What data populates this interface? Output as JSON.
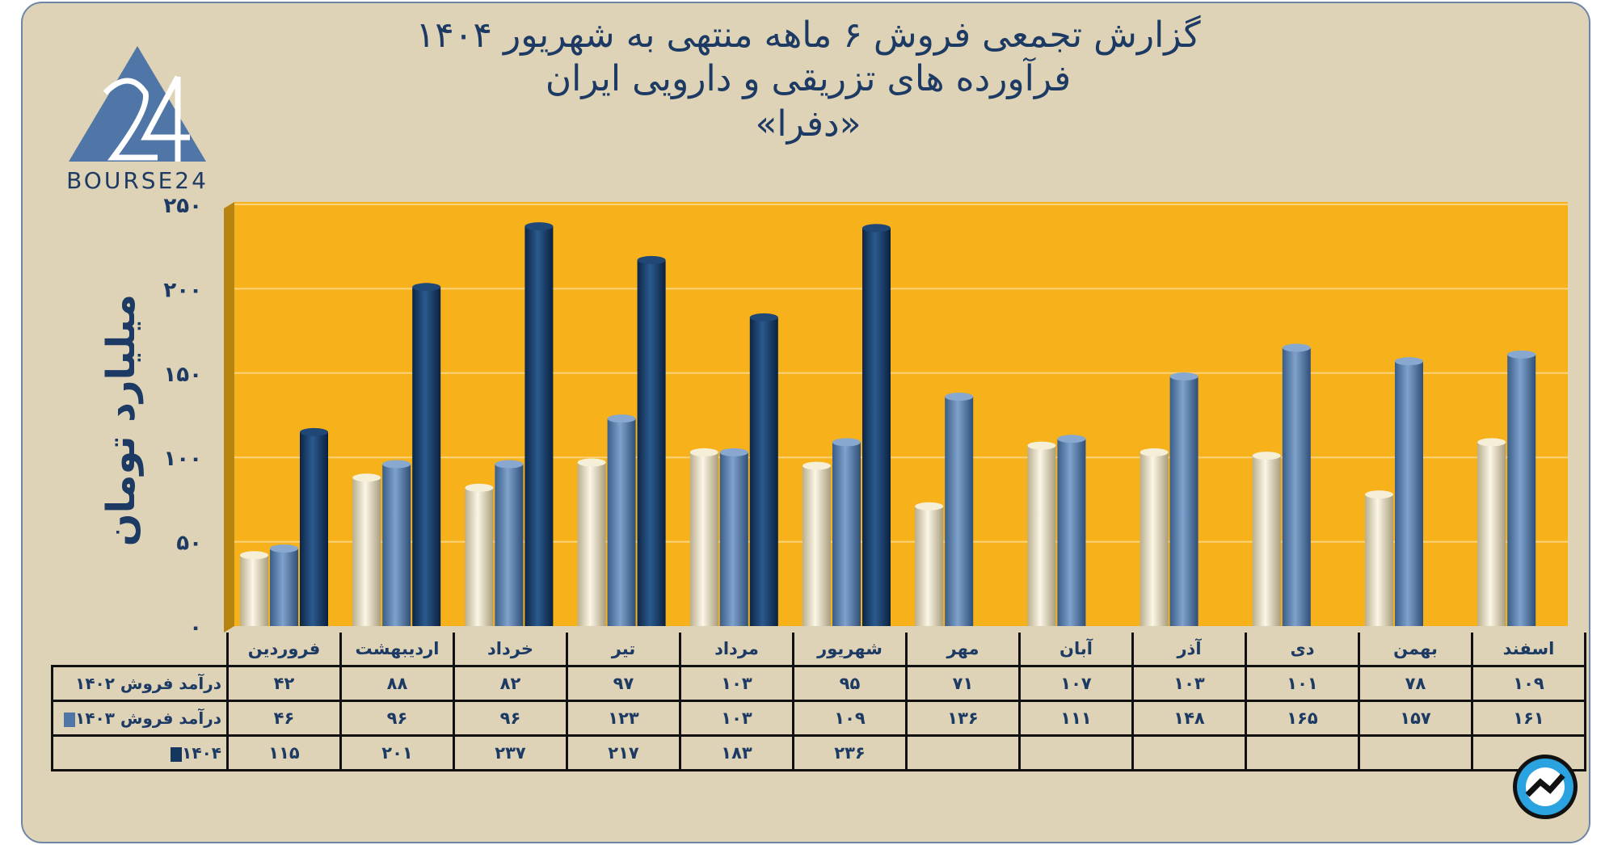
{
  "header": {
    "title_line1": "گزارش تجمعی فروش ۶ ماهه منتهی به شهریور ۱۴۰۴",
    "title_line2": "فرآورده های تزریقی و دارویی ایران",
    "title_line3": "«دفرا»"
  },
  "logo": {
    "text": "BOURSE24"
  },
  "colors": {
    "plot_bg": "#f7b21b",
    "s1402": "#e9dfc0",
    "s1403": "#4f76a6",
    "s1404": "#14365f",
    "text": "#1c3a63"
  },
  "chart_data": {
    "type": "bar",
    "title": "گزارش تجمعی فروش ۶ ماهه منتهی به شهریور ۱۴۰۴",
    "ylabel": "میلیارد تومان",
    "xlabel": "",
    "ylim": [
      0,
      250
    ],
    "yticks": [
      0,
      50,
      100,
      150,
      200,
      250
    ],
    "ytick_labels": [
      "۰",
      "۵۰",
      "۱۰۰",
      "۱۵۰",
      "۲۰۰",
      "۲۵۰"
    ],
    "grid": true,
    "categories": [
      "فروردین",
      "اردیبهشت",
      "خرداد",
      "تیر",
      "مرداد",
      "شهریور",
      "مهر",
      "آبان",
      "آذر",
      "دی",
      "بهمن",
      "اسفند"
    ],
    "series": [
      {
        "name": "درآمد فروش ۱۴۰۲",
        "values": [
          42,
          88,
          82,
          97,
          103,
          95,
          71,
          107,
          103,
          101,
          78,
          109
        ],
        "labels": [
          "۴۲",
          "۸۸",
          "۸۲",
          "۹۷",
          "۱۰۳",
          "۹۵",
          "۷۱",
          "۱۰۷",
          "۱۰۳",
          "۱۰۱",
          "۷۸",
          "۱۰۹"
        ]
      },
      {
        "name": "درآمد فروش ۱۴۰۳",
        "values": [
          46,
          96,
          96,
          123,
          103,
          109,
          136,
          111,
          148,
          165,
          157,
          161
        ],
        "labels": [
          "۴۶",
          "۹۶",
          "۹۶",
          "۱۲۳",
          "۱۰۳",
          "۱۰۹",
          "۱۳۶",
          "۱۱۱",
          "۱۴۸",
          "۱۶۵",
          "۱۵۷",
          "۱۶۱"
        ]
      },
      {
        "name": "۱۴۰۴",
        "values": [
          115,
          201,
          237,
          217,
          183,
          236,
          null,
          null,
          null,
          null,
          null,
          null
        ],
        "labels": [
          "۱۱۵",
          "۲۰۱",
          "۲۳۷",
          "۲۱۷",
          "۱۸۳",
          "۲۳۶",
          "",
          "",
          "",
          "",
          "",
          ""
        ]
      }
    ]
  }
}
